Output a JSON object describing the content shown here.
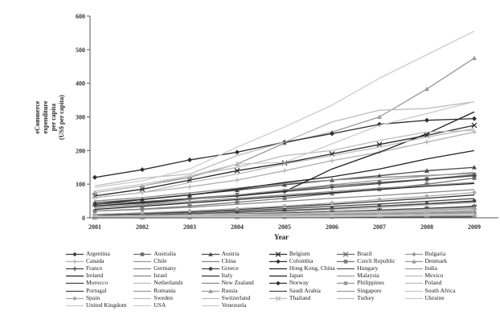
{
  "chart_data": {
    "type": "line",
    "xlabel": "Year",
    "ylabel": "eCommerce\nexpenditure\nper capita\n(US$ per capita)",
    "categories": [
      "2001",
      "2002",
      "2003",
      "2004",
      "2005",
      "2006",
      "2007",
      "2008",
      "2009"
    ],
    "yticks": [
      0,
      100,
      200,
      300,
      400,
      500,
      600
    ],
    "ylim": [
      0,
      600
    ],
    "grid": false,
    "legend_position": "bottom",
    "series": [
      {
        "name": "Argentina",
        "color": "#3a3a3a",
        "marker": "diamond",
        "values": [
          8,
          6,
          7,
          10,
          14,
          18,
          23,
          28,
          34
        ]
      },
      {
        "name": "Australia",
        "color": "#6e6e6e",
        "marker": "square",
        "values": [
          40,
          48,
          58,
          68,
          80,
          95,
          105,
          115,
          128
        ]
      },
      {
        "name": "Austria",
        "color": "#4a4a4a",
        "marker": "triangle",
        "values": [
          45,
          55,
          68,
          82,
          98,
          112,
          125,
          140,
          150
        ]
      },
      {
        "name": "Belgium",
        "color": "#2a2a2a",
        "marker": "x",
        "values": [
          65,
          85,
          112,
          140,
          163,
          190,
          218,
          245,
          275
        ]
      },
      {
        "name": "Brazil",
        "color": "#6a6a6a",
        "marker": "x",
        "values": [
          3,
          4,
          6,
          9,
          12,
          16,
          21,
          26,
          32
        ]
      },
      {
        "name": "Bulgaria",
        "color": "#9a9a9a",
        "marker": "diamond",
        "values": [
          1,
          2,
          3,
          5,
          7,
          9,
          12,
          15,
          19
        ]
      },
      {
        "name": "Canada",
        "color": "#b0b0b0",
        "marker": "plus",
        "values": [
          60,
          75,
          92,
          112,
          140,
          170,
          195,
          225,
          255
        ]
      },
      {
        "name": "Chile",
        "color": "#9a9a9a",
        "marker": "none",
        "values": [
          4,
          5,
          7,
          9,
          12,
          15,
          19,
          23,
          27
        ]
      },
      {
        "name": "China",
        "color": "#8a8a8a",
        "marker": "none",
        "values": [
          0,
          1,
          1,
          2,
          3,
          5,
          8,
          11,
          15
        ]
      },
      {
        "name": "Colombia",
        "color": "#333333",
        "marker": "diamond",
        "values": [
          1,
          1,
          2,
          3,
          4,
          6,
          8,
          10,
          12
        ]
      },
      {
        "name": "Czech Republic",
        "color": "#777777",
        "marker": "square",
        "values": [
          20,
          26,
          35,
          46,
          58,
          72,
          85,
          100,
          118
        ]
      },
      {
        "name": "Denmark",
        "color": "#999999",
        "marker": "triangle",
        "values": [
          75,
          95,
          120,
          160,
          222,
          255,
          300,
          383,
          475
        ]
      },
      {
        "name": "France",
        "color": "#444444",
        "marker": "plus",
        "values": [
          35,
          44,
          55,
          66,
          78,
          90,
          102,
          114,
          125
        ]
      },
      {
        "name": "Germany",
        "color": "#8a8a8a",
        "marker": "none",
        "values": [
          50,
          60,
          74,
          88,
          102,
          112,
          120,
          126,
          132
        ]
      },
      {
        "name": "Greece",
        "color": "#444444",
        "marker": "circle",
        "values": [
          5,
          8,
          12,
          17,
          22,
          28,
          35,
          42,
          50
        ]
      },
      {
        "name": "Hong Kong, China",
        "color": "#222222",
        "marker": "none",
        "values": [
          25,
          34,
          44,
          54,
          64,
          74,
          84,
          94,
          102
        ]
      },
      {
        "name": "Hungary",
        "color": "#555555",
        "marker": "none",
        "values": [
          5,
          8,
          12,
          16,
          21,
          27,
          34,
          41,
          48
        ]
      },
      {
        "name": "India",
        "color": "#9a9a9a",
        "marker": "none",
        "values": [
          0,
          0,
          1,
          1,
          2,
          2,
          3,
          4,
          5
        ]
      },
      {
        "name": "Ireland",
        "color": "#222222",
        "marker": "none",
        "values": [
          40,
          54,
          68,
          85,
          105,
          122,
          145,
          175,
          200
        ]
      },
      {
        "name": "Israel",
        "color": "#888888",
        "marker": "none",
        "values": [
          20,
          25,
          31,
          40,
          49,
          58,
          66,
          75,
          84
        ]
      },
      {
        "name": "Italy",
        "color": "#333333",
        "marker": "none",
        "values": [
          10,
          14,
          19,
          25,
          32,
          40,
          49,
          58,
          68
        ]
      },
      {
        "name": "Japan",
        "color": "#1e1e1e",
        "marker": "none",
        "values": [
          35,
          45,
          55,
          65,
          78,
          145,
          195,
          250,
          315
        ]
      },
      {
        "name": "Malaysia",
        "color": "#9a9a9a",
        "marker": "none",
        "values": [
          2,
          3,
          4,
          6,
          8,
          10,
          13,
          16,
          20
        ]
      },
      {
        "name": "Mexico",
        "color": "#bbbbbb",
        "marker": "none",
        "values": [
          3,
          4,
          6,
          8,
          10,
          13,
          16,
          19,
          23
        ]
      },
      {
        "name": "Morocco",
        "color": "#444444",
        "marker": "none",
        "values": [
          0,
          0,
          0,
          1,
          1,
          1,
          2,
          2,
          3
        ]
      },
      {
        "name": "Netherlands",
        "color": "#bbbbbb",
        "marker": "none",
        "values": [
          60,
          75,
          105,
          130,
          160,
          185,
          210,
          240,
          265
        ]
      },
      {
        "name": "New Zealand",
        "color": "#888888",
        "marker": "none",
        "values": [
          30,
          38,
          48,
          58,
          68,
          78,
          88,
          96,
          105
        ]
      },
      {
        "name": "Norway",
        "color": "#2e2e2e",
        "marker": "diamond",
        "values": [
          120,
          143,
          172,
          195,
          225,
          250,
          278,
          290,
          295
        ]
      },
      {
        "name": "Philippines",
        "color": "#999999",
        "marker": "square",
        "values": [
          1,
          1,
          1,
          2,
          2,
          3,
          4,
          5,
          6
        ]
      },
      {
        "name": "Poland",
        "color": "#bbbbbb",
        "marker": "none",
        "values": [
          3,
          5,
          8,
          12,
          17,
          23,
          30,
          38,
          45
        ]
      },
      {
        "name": "Portugal",
        "color": "#444444",
        "marker": "none",
        "values": [
          8,
          12,
          16,
          21,
          27,
          34,
          41,
          49,
          57
        ]
      },
      {
        "name": "Romania",
        "color": "#999999",
        "marker": "none",
        "values": [
          1,
          2,
          3,
          4,
          6,
          8,
          11,
          14,
          18
        ]
      },
      {
        "name": "Russia",
        "color": "#999999",
        "marker": "triangle",
        "values": [
          1,
          2,
          3,
          5,
          8,
          12,
          17,
          23,
          30
        ]
      },
      {
        "name": "Saudi Arabia",
        "color": "#444444",
        "marker": "none",
        "values": [
          4,
          6,
          8,
          11,
          14,
          18,
          22,
          27,
          32
        ]
      },
      {
        "name": "Singapore",
        "color": "#999999",
        "marker": "none",
        "values": [
          30,
          40,
          54,
          68,
          83,
          98,
          112,
          124,
          135
        ]
      },
      {
        "name": "South Africa",
        "color": "#c8c8c8",
        "marker": "none",
        "values": [
          5,
          6,
          8,
          10,
          12,
          14,
          17,
          20,
          23
        ]
      },
      {
        "name": "Spain",
        "color": "#aaaaaa",
        "marker": "diamond",
        "values": [
          10,
          15,
          20,
          27,
          35,
          44,
          54,
          64,
          75
        ]
      },
      {
        "name": "Sweden",
        "color": "#bbbbbb",
        "marker": "none",
        "values": [
          75,
          95,
          125,
          150,
          185,
          200,
          230,
          255,
          260
        ]
      },
      {
        "name": "Switzerland",
        "color": "#bbbbbb",
        "marker": "none",
        "values": [
          95,
          118,
          130,
          185,
          225,
          285,
          320,
          325,
          345
        ]
      },
      {
        "name": "Thailand",
        "color": "#bbbbbb",
        "marker": "x",
        "values": [
          1,
          2,
          3,
          4,
          5,
          6,
          8,
          10,
          12
        ]
      },
      {
        "name": "Turkey",
        "color": "#bbbbbb",
        "marker": "none",
        "values": [
          3,
          4,
          6,
          9,
          12,
          16,
          20,
          25,
          30
        ]
      },
      {
        "name": "Ukraine",
        "color": "#c8c8c8",
        "marker": "none",
        "values": [
          0,
          1,
          1,
          2,
          3,
          4,
          6,
          8,
          10
        ]
      },
      {
        "name": "United Kingdom",
        "color": "#cccccc",
        "marker": "none",
        "values": [
          90,
          110,
          145,
          210,
          270,
          335,
          415,
          485,
          555
        ]
      },
      {
        "name": "USA",
        "color": "#cccccc",
        "marker": "none",
        "values": [
          80,
          100,
          125,
          160,
          165,
          220,
          275,
          310,
          345
        ]
      },
      {
        "name": "Venezuela",
        "color": "#cccccc",
        "marker": "none",
        "values": [
          2,
          2,
          3,
          3,
          4,
          5,
          6,
          8,
          10
        ]
      }
    ]
  }
}
